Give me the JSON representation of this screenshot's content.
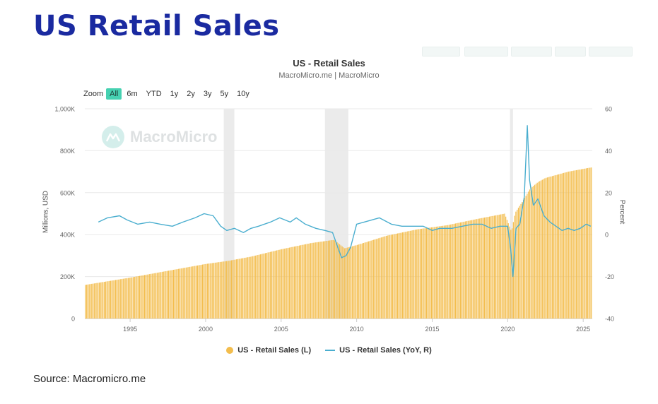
{
  "page": {
    "title": "US Retail Sales",
    "source": "Source: Macromicro.me",
    "watermark": "MacroMicro"
  },
  "zoom": {
    "label": "Zoom",
    "options": [
      "All",
      "6m",
      "YTD",
      "1y",
      "2y",
      "3y",
      "5y",
      "10y"
    ],
    "selected": "All"
  },
  "colors": {
    "bars": "#f3bd4d",
    "line": "#4aaecf",
    "recession": "#e6e6e6",
    "zoom_active": "#46d1b1",
    "title": "#1a2aa0"
  },
  "chart_data": {
    "type": "bar+line",
    "title": "US - Retail Sales",
    "subtitle": "MacroMicro.me | MacroMicro",
    "x_range": [
      1992.0,
      2025.6
    ],
    "x_ticks": [
      1995,
      2000,
      2005,
      2010,
      2015,
      2020,
      2025
    ],
    "y_left": {
      "label": "Millions, USD",
      "range": [
        0,
        1000000
      ],
      "tick_labels": [
        "0",
        "200K",
        "400K",
        "600K",
        "800K",
        "1,000K"
      ]
    },
    "y_right": {
      "label": "Percent",
      "range": [
        -40,
        60
      ],
      "tick_labels": [
        "-40",
        "-20",
        "0",
        "20",
        "40",
        "60"
      ]
    },
    "recession_periods": [
      [
        2001.2,
        2001.9
      ],
      [
        2007.9,
        2009.45
      ],
      [
        2020.15,
        2020.35
      ]
    ],
    "grid": "horizontal",
    "legend_position": "bottom",
    "series": [
      {
        "name": "US - Retail Sales (L)",
        "kind": "bar",
        "axis": "left",
        "points": [
          [
            1992.0,
            160000
          ],
          [
            1995.0,
            195000
          ],
          [
            2000.0,
            260000
          ],
          [
            2001.5,
            275000
          ],
          [
            2003.0,
            295000
          ],
          [
            2005.0,
            330000
          ],
          [
            2007.0,
            360000
          ],
          [
            2008.5,
            375000
          ],
          [
            2009.2,
            335000
          ],
          [
            2010.0,
            350000
          ],
          [
            2012.0,
            395000
          ],
          [
            2014.0,
            425000
          ],
          [
            2016.0,
            445000
          ],
          [
            2018.0,
            475000
          ],
          [
            2019.8,
            500000
          ],
          [
            2020.25,
            415000
          ],
          [
            2020.5,
            505000
          ],
          [
            2021.0,
            560000
          ],
          [
            2021.5,
            620000
          ],
          [
            2022.0,
            650000
          ],
          [
            2022.5,
            670000
          ],
          [
            2023.0,
            680000
          ],
          [
            2024.0,
            700000
          ],
          [
            2025.5,
            720000
          ]
        ]
      },
      {
        "name": "US - Retail Sales (YoY, R)",
        "kind": "line",
        "axis": "right",
        "points": [
          [
            1992.9,
            6
          ],
          [
            1993.5,
            8
          ],
          [
            1994.3,
            9
          ],
          [
            1994.8,
            7
          ],
          [
            1995.5,
            5
          ],
          [
            1996.3,
            6
          ],
          [
            1997.0,
            5
          ],
          [
            1997.8,
            4
          ],
          [
            1998.5,
            6
          ],
          [
            1999.3,
            8
          ],
          [
            1999.9,
            10
          ],
          [
            2000.5,
            9
          ],
          [
            2001.0,
            4
          ],
          [
            2001.4,
            2
          ],
          [
            2001.9,
            3
          ],
          [
            2002.5,
            1
          ],
          [
            2003.0,
            3
          ],
          [
            2003.5,
            4
          ],
          [
            2004.3,
            6
          ],
          [
            2004.9,
            8
          ],
          [
            2005.6,
            6
          ],
          [
            2006.0,
            8
          ],
          [
            2006.6,
            5
          ],
          [
            2007.3,
            3
          ],
          [
            2007.9,
            2
          ],
          [
            2008.4,
            1
          ],
          [
            2008.8,
            -7
          ],
          [
            2009.0,
            -11
          ],
          [
            2009.3,
            -10
          ],
          [
            2009.6,
            -6
          ],
          [
            2010.0,
            5
          ],
          [
            2010.5,
            6
          ],
          [
            2011.0,
            7
          ],
          [
            2011.5,
            8
          ],
          [
            2012.3,
            5
          ],
          [
            2013.0,
            4
          ],
          [
            2013.7,
            4
          ],
          [
            2014.4,
            4
          ],
          [
            2015.0,
            2
          ],
          [
            2015.5,
            3
          ],
          [
            2016.3,
            3
          ],
          [
            2017.0,
            4
          ],
          [
            2017.7,
            5
          ],
          [
            2018.3,
            5
          ],
          [
            2018.9,
            3
          ],
          [
            2019.5,
            4
          ],
          [
            2020.0,
            4
          ],
          [
            2020.2,
            -7
          ],
          [
            2020.35,
            -20
          ],
          [
            2020.55,
            3
          ],
          [
            2020.8,
            5
          ],
          [
            2021.1,
            18
          ],
          [
            2021.3,
            52
          ],
          [
            2021.45,
            26
          ],
          [
            2021.7,
            14
          ],
          [
            2022.0,
            17
          ],
          [
            2022.4,
            9
          ],
          [
            2022.8,
            6
          ],
          [
            2023.2,
            4
          ],
          [
            2023.6,
            2
          ],
          [
            2024.0,
            3
          ],
          [
            2024.4,
            2
          ],
          [
            2024.8,
            3
          ],
          [
            2025.2,
            5
          ],
          [
            2025.5,
            4
          ]
        ]
      }
    ]
  }
}
